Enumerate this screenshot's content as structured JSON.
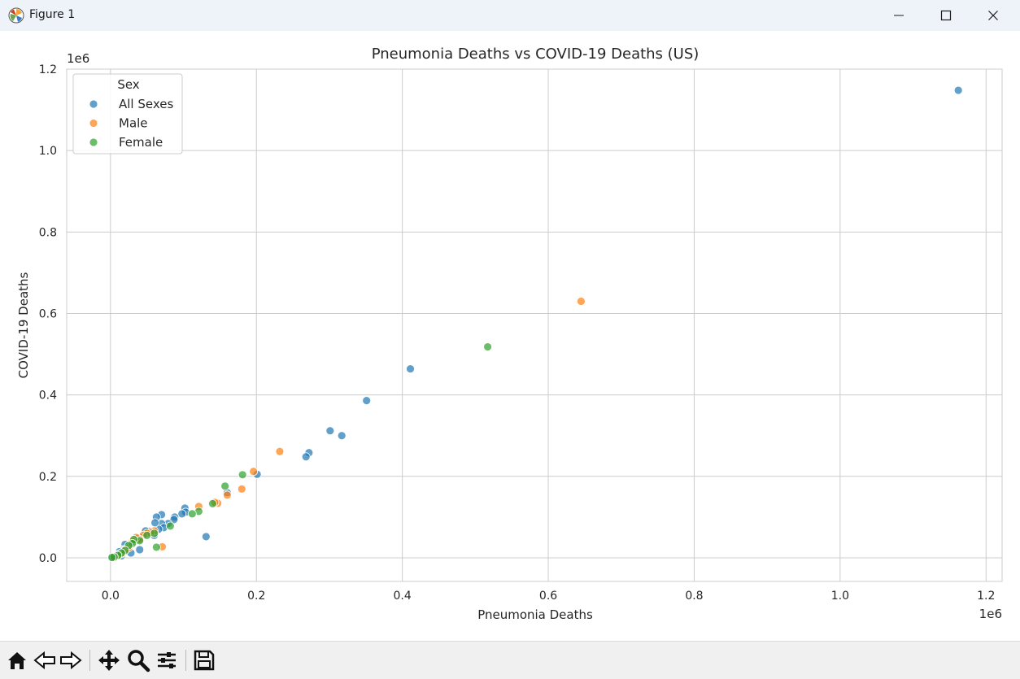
{
  "window": {
    "title": "Figure 1"
  },
  "toolbar": {
    "tools": [
      "home-icon",
      "back-icon",
      "forward-icon",
      "pan-icon",
      "zoom-icon",
      "configure-subplots-icon",
      "save-icon"
    ]
  },
  "chart_data": {
    "type": "scatter",
    "title": "Pneumonia Deaths vs COVID-19 Deaths (US)",
    "xlabel": "Pneumonia Deaths",
    "ylabel": "COVID-19 Deaths",
    "x_offset_label": "1e6",
    "y_offset_label": "1e6",
    "xlim": [
      -0.06,
      1.222
    ],
    "ylim": [
      -0.058,
      1.2
    ],
    "x_ticks": [
      0.0,
      0.2,
      0.4,
      0.6,
      0.8,
      1.0,
      1.2
    ],
    "x_tick_labels": [
      "0.0",
      "0.2",
      "0.4",
      "0.6",
      "0.8",
      "1.0",
      "1.2"
    ],
    "y_ticks": [
      0.0,
      0.2,
      0.4,
      0.6,
      0.8,
      1.0,
      1.2
    ],
    "y_tick_labels": [
      "0.0",
      "0.2",
      "0.4",
      "0.6",
      "0.8",
      "1.0",
      "1.2"
    ],
    "grid": true,
    "legend": {
      "title": "Sex",
      "position": "top-left"
    },
    "series": [
      {
        "name": "All Sexes",
        "color": "#1f77b4",
        "points": [
          [
            1.162,
            1.148
          ],
          [
            0.411,
            0.464
          ],
          [
            0.351,
            0.386
          ],
          [
            0.301,
            0.312
          ],
          [
            0.317,
            0.3
          ],
          [
            0.272,
            0.258
          ],
          [
            0.268,
            0.248
          ],
          [
            0.201,
            0.205
          ],
          [
            0.16,
            0.16
          ],
          [
            0.131,
            0.052
          ],
          [
            0.102,
            0.122
          ],
          [
            0.103,
            0.112
          ],
          [
            0.098,
            0.108
          ],
          [
            0.088,
            0.1
          ],
          [
            0.087,
            0.094
          ],
          [
            0.079,
            0.084
          ],
          [
            0.07,
            0.106
          ],
          [
            0.07,
            0.084
          ],
          [
            0.073,
            0.074
          ],
          [
            0.066,
            0.07
          ],
          [
            0.063,
            0.1
          ],
          [
            0.061,
            0.086
          ],
          [
            0.06,
            0.055
          ],
          [
            0.053,
            0.065
          ],
          [
            0.048,
            0.066
          ],
          [
            0.04,
            0.05
          ],
          [
            0.038,
            0.048
          ],
          [
            0.04,
            0.02
          ],
          [
            0.033,
            0.04
          ],
          [
            0.028,
            0.012
          ],
          [
            0.025,
            0.03
          ],
          [
            0.02,
            0.033
          ],
          [
            0.018,
            0.02
          ],
          [
            0.015,
            0.005
          ],
          [
            0.012,
            0.015
          ],
          [
            0.01,
            0.008
          ],
          [
            0.008,
            0.003
          ],
          [
            0.005,
            0.002
          ],
          [
            0.003,
            0.001
          ]
        ]
      },
      {
        "name": "Male",
        "color": "#ff7f0e",
        "points": [
          [
            0.645,
            0.63
          ],
          [
            0.232,
            0.261
          ],
          [
            0.196,
            0.212
          ],
          [
            0.18,
            0.169
          ],
          [
            0.16,
            0.154
          ],
          [
            0.147,
            0.134
          ],
          [
            0.143,
            0.136
          ],
          [
            0.121,
            0.126
          ],
          [
            0.071,
            0.027
          ],
          [
            0.06,
            0.066
          ],
          [
            0.055,
            0.062
          ],
          [
            0.05,
            0.06
          ],
          [
            0.045,
            0.055
          ],
          [
            0.04,
            0.045
          ],
          [
            0.035,
            0.05
          ],
          [
            0.03,
            0.04
          ],
          [
            0.025,
            0.025
          ],
          [
            0.02,
            0.02
          ],
          [
            0.015,
            0.01
          ],
          [
            0.01,
            0.005
          ],
          [
            0.005,
            0.002
          ]
        ]
      },
      {
        "name": "Female",
        "color": "#2ca02c",
        "points": [
          [
            0.517,
            0.518
          ],
          [
            0.181,
            0.204
          ],
          [
            0.157,
            0.176
          ],
          [
            0.14,
            0.133
          ],
          [
            0.121,
            0.114
          ],
          [
            0.112,
            0.108
          ],
          [
            0.082,
            0.078
          ],
          [
            0.063,
            0.026
          ],
          [
            0.06,
            0.06
          ],
          [
            0.05,
            0.055
          ],
          [
            0.04,
            0.042
          ],
          [
            0.032,
            0.045
          ],
          [
            0.03,
            0.035
          ],
          [
            0.025,
            0.03
          ],
          [
            0.02,
            0.018
          ],
          [
            0.015,
            0.012
          ],
          [
            0.01,
            0.006
          ],
          [
            0.005,
            0.002
          ],
          [
            0.002,
            0.001
          ]
        ]
      }
    ]
  }
}
